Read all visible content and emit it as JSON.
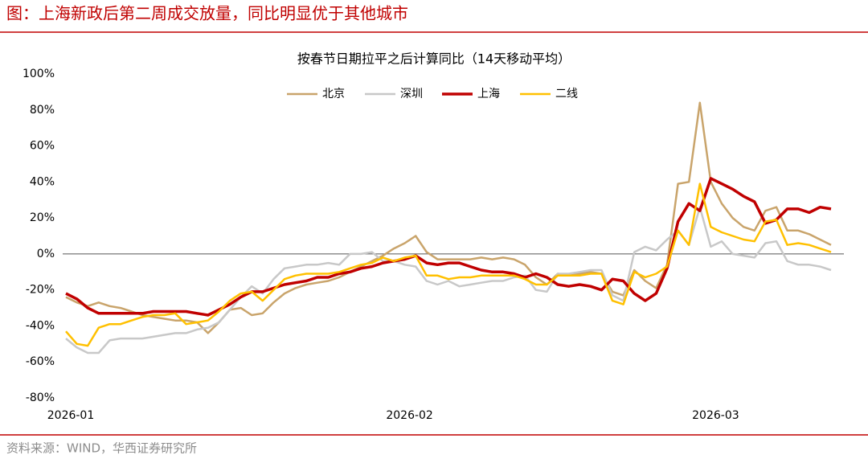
{
  "header": {
    "title": "图：上海新政后第二周成交放量，同比明显优于其他城市"
  },
  "chart_data": {
    "type": "line",
    "title": "按春节日期拉平之后计算同比（14天移动平均）",
    "categories": [
      "2026-01",
      null,
      null,
      null,
      null,
      null,
      null,
      null,
      null,
      null,
      null,
      null,
      null,
      null,
      null,
      null,
      null,
      null,
      null,
      null,
      null,
      null,
      null,
      null,
      null,
      null,
      null,
      null,
      null,
      null,
      null,
      "2026-02",
      null,
      null,
      null,
      null,
      null,
      null,
      null,
      null,
      null,
      null,
      null,
      null,
      null,
      null,
      null,
      null,
      null,
      null,
      null,
      null,
      null,
      null,
      null,
      null,
      null,
      null,
      null,
      "2026-03",
      null,
      null,
      null,
      null,
      null,
      null,
      null,
      null,
      null,
      null,
      null
    ],
    "series": [
      {
        "name": "北京",
        "color": "#c9a46b",
        "values": [
          -24,
          -27,
          -29,
          -27,
          -29,
          -30,
          -32,
          -34,
          -35,
          -36,
          -37,
          -37,
          -38,
          -44,
          -38,
          -31,
          -30,
          -34,
          -33,
          -27,
          -22,
          -19,
          -17,
          -16,
          -15,
          -13,
          -10,
          -7,
          -4,
          -1,
          3,
          6,
          10,
          1,
          -3,
          -3,
          -3,
          -3,
          -2,
          -3,
          -2,
          -3,
          -6,
          -13,
          -17,
          -11,
          -12,
          -11,
          -10,
          -11,
          -21,
          -23,
          -9,
          -15,
          -19,
          -6,
          39,
          40,
          84,
          40,
          28,
          20,
          15,
          13,
          24,
          26,
          13,
          13,
          11,
          8,
          5
        ]
      },
      {
        "name": "深圳",
        "color": "#c8c8c8",
        "values": [
          -47,
          -52,
          -55,
          -55,
          -48,
          -47,
          -47,
          -47,
          -46,
          -45,
          -44,
          -44,
          -42,
          -41,
          -38,
          -31,
          -24,
          -18,
          -22,
          -14,
          -8,
          -7,
          -6,
          -6,
          -5,
          -6,
          0,
          0,
          1,
          -4,
          -4,
          -6,
          -7,
          -15,
          -17,
          -15,
          -18,
          -17,
          -16,
          -15,
          -15,
          -13,
          -12,
          -20,
          -21,
          -11,
          -11,
          -10,
          -9,
          -9,
          -23,
          -26,
          1,
          4,
          2,
          8,
          13,
          5,
          26,
          4,
          7,
          0,
          -1,
          -2,
          6,
          7,
          -4,
          -6,
          -6,
          -7,
          -9
        ]
      },
      {
        "name": "上海",
        "color": "#c00000",
        "values": [
          -22,
          -25,
          -30,
          -33,
          -33,
          -33,
          -33,
          -33,
          -32,
          -32,
          -32,
          -32,
          -33,
          -34,
          -31,
          -28,
          -24,
          -21,
          -21,
          -19,
          -17,
          -16,
          -15,
          -13,
          -13,
          -11,
          -10,
          -8,
          -7,
          -5,
          -4,
          -3,
          -1,
          -5,
          -6,
          -5,
          -5,
          -7,
          -9,
          -10,
          -10,
          -11,
          -13,
          -11,
          -13,
          -17,
          -18,
          -17,
          -18,
          -20,
          -14,
          -15,
          -22,
          -26,
          -22,
          -8,
          18,
          28,
          24,
          42,
          39,
          36,
          32,
          29,
          17,
          19,
          25,
          25,
          23,
          26,
          25
        ]
      },
      {
        "name": "二线",
        "color": "#ffc000",
        "values": [
          -43,
          -50,
          -51,
          -41,
          -39,
          -39,
          -37,
          -35,
          -34,
          -34,
          -33,
          -39,
          -38,
          -37,
          -32,
          -26,
          -22,
          -21,
          -26,
          -20,
          -14,
          -12,
          -11,
          -11,
          -11,
          -10,
          -8,
          -6,
          -5,
          -2,
          -4,
          -2,
          -1,
          -12,
          -12,
          -14,
          -13,
          -13,
          -12,
          -12,
          -12,
          -12,
          -14,
          -17,
          -17,
          -12,
          -12,
          -12,
          -11,
          -11,
          -26,
          -28,
          -10,
          -13,
          -11,
          -7,
          13,
          5,
          39,
          15,
          12,
          10,
          8,
          7,
          18,
          19,
          5,
          6,
          5,
          3,
          1
        ]
      }
    ],
    "ylim": [
      -80,
      100
    ],
    "yticks": [
      {
        "value": -80,
        "label": "-80%"
      },
      {
        "value": -60,
        "label": "-60%"
      },
      {
        "value": -40,
        "label": "-40%"
      },
      {
        "value": -20,
        "label": "-20%"
      },
      {
        "value": 0,
        "label": "0%"
      },
      {
        "value": 20,
        "label": "20%"
      },
      {
        "value": 40,
        "label": "40%"
      },
      {
        "value": 60,
        "label": "60%"
      },
      {
        "value": 80,
        "label": "80%"
      },
      {
        "value": 100,
        "label": "100%"
      }
    ],
    "grid": false,
    "legend": "top"
  },
  "footer": {
    "source": "资料来源：WIND，华西证券研究所"
  }
}
